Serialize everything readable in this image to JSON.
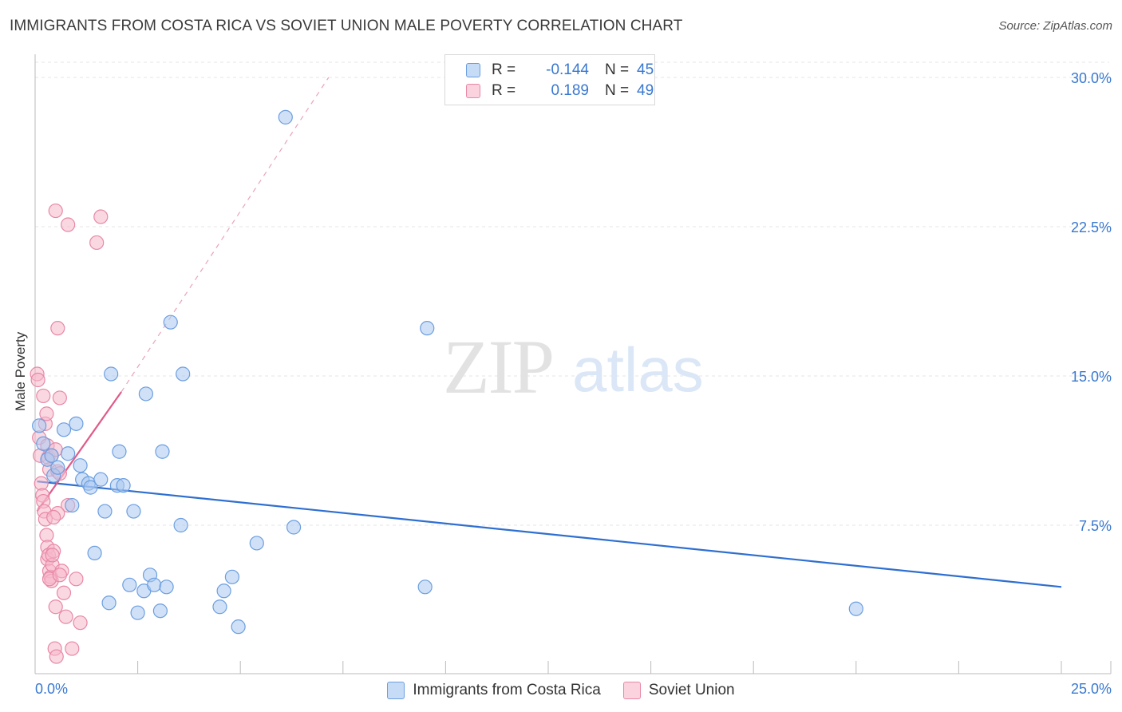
{
  "header": {
    "title": "IMMIGRANTS FROM COSTA RICA VS SOVIET UNION MALE POVERTY CORRELATION CHART",
    "source": "Source: ZipAtlas.com"
  },
  "watermark": {
    "zip": "ZIP",
    "atlas": "atlas"
  },
  "legend": {
    "rows": [
      {
        "r_label": "R =",
        "r_value": "-0.144",
        "n_label": "N =",
        "n_value": "45",
        "color": "#a9c8f0",
        "border": "#6b9ee0"
      },
      {
        "r_label": "R =",
        "r_value": "0.189",
        "n_label": "N =",
        "n_value": "49",
        "color": "#f6b8cb",
        "border": "#e888a6"
      }
    ]
  },
  "chart_data": {
    "type": "scatter",
    "title": "IMMIGRANTS FROM COSTA RICA VS SOVIET UNION MALE POVERTY CORRELATION CHART",
    "xlabel": "",
    "ylabel": "Male Poverty",
    "xlim": [
      0,
      25
    ],
    "ylim": [
      0,
      30.8
    ],
    "x_tick_labels": [
      "0.0%",
      "25.0%"
    ],
    "y_ticks": [
      7.5,
      15.0,
      22.5,
      30.0
    ],
    "y_tick_labels": [
      "7.5%",
      "15.0%",
      "22.5%",
      "30.0%"
    ],
    "grid": true,
    "series": [
      {
        "name": "Immigrants from Costa Rica",
        "color": "#a9c8f0",
        "stroke": "#6b9ee0",
        "line_color": "#2f6fd0",
        "trend": {
          "x0": 0.05,
          "y0": 9.7,
          "x1": 25.0,
          "y1": 4.4
        },
        "points": [
          [
            0.1,
            12.5
          ],
          [
            0.2,
            11.6
          ],
          [
            0.3,
            10.8
          ],
          [
            0.4,
            11.0
          ],
          [
            0.45,
            10.0
          ],
          [
            0.55,
            10.4
          ],
          [
            0.7,
            12.3
          ],
          [
            0.8,
            11.1
          ],
          [
            0.9,
            8.5
          ],
          [
            1.0,
            12.6
          ],
          [
            1.1,
            10.5
          ],
          [
            1.15,
            9.8
          ],
          [
            1.3,
            9.6
          ],
          [
            1.35,
            9.4
          ],
          [
            1.45,
            6.1
          ],
          [
            1.6,
            9.8
          ],
          [
            1.7,
            8.2
          ],
          [
            1.8,
            3.6
          ],
          [
            1.85,
            15.1
          ],
          [
            2.0,
            9.5
          ],
          [
            2.05,
            11.2
          ],
          [
            2.15,
            9.5
          ],
          [
            2.3,
            4.5
          ],
          [
            2.4,
            8.2
          ],
          [
            2.5,
            3.1
          ],
          [
            2.65,
            4.2
          ],
          [
            2.7,
            14.1
          ],
          [
            2.8,
            5.0
          ],
          [
            2.9,
            4.5
          ],
          [
            3.05,
            3.2
          ],
          [
            3.1,
            11.2
          ],
          [
            3.2,
            4.4
          ],
          [
            3.3,
            17.7
          ],
          [
            3.55,
            7.5
          ],
          [
            3.6,
            15.1
          ],
          [
            4.5,
            3.4
          ],
          [
            4.6,
            4.2
          ],
          [
            4.8,
            4.9
          ],
          [
            4.95,
            2.4
          ],
          [
            5.4,
            6.6
          ],
          [
            6.1,
            28.0
          ],
          [
            6.3,
            7.4
          ],
          [
            9.5,
            4.4
          ],
          [
            9.55,
            17.4
          ],
          [
            20.0,
            3.3
          ]
        ]
      },
      {
        "name": "Soviet Union",
        "color": "#f6b8cb",
        "stroke": "#e888a6",
        "line_color": "#e05a8a",
        "trend": {
          "x0": 0.05,
          "y0": 8.2,
          "x1": 2.1,
          "y1": 14.2
        },
        "trend_ext": {
          "x0": 2.1,
          "y0": 14.2,
          "x1": 7.15,
          "y1": 30.0
        },
        "points": [
          [
            0.05,
            15.1
          ],
          [
            0.07,
            14.8
          ],
          [
            0.1,
            11.9
          ],
          [
            0.12,
            11.0
          ],
          [
            0.15,
            9.6
          ],
          [
            0.18,
            9.0
          ],
          [
            0.2,
            8.7
          ],
          [
            0.22,
            8.2
          ],
          [
            0.25,
            7.8
          ],
          [
            0.28,
            7.0
          ],
          [
            0.3,
            6.4
          ],
          [
            0.3,
            5.8
          ],
          [
            0.33,
            6.0
          ],
          [
            0.35,
            5.2
          ],
          [
            0.38,
            4.9
          ],
          [
            0.4,
            4.7
          ],
          [
            0.42,
            5.5
          ],
          [
            0.45,
            6.2
          ],
          [
            0.25,
            12.6
          ],
          [
            0.28,
            13.1
          ],
          [
            0.3,
            11.5
          ],
          [
            0.32,
            10.9
          ],
          [
            0.35,
            10.3
          ],
          [
            0.4,
            11.0
          ],
          [
            0.5,
            11.3
          ],
          [
            0.55,
            10.2
          ],
          [
            0.6,
            10.1
          ],
          [
            0.65,
            5.2
          ],
          [
            0.7,
            4.1
          ],
          [
            0.75,
            2.9
          ],
          [
            0.8,
            8.5
          ],
          [
            0.55,
            8.1
          ],
          [
            0.45,
            7.9
          ],
          [
            0.5,
            3.4
          ],
          [
            0.48,
            1.3
          ],
          [
            0.52,
            0.9
          ],
          [
            0.35,
            4.8
          ],
          [
            0.42,
            6.0
          ],
          [
            0.6,
            5.0
          ],
          [
            0.9,
            1.3
          ],
          [
            1.0,
            4.8
          ],
          [
            1.1,
            2.6
          ],
          [
            0.55,
            17.4
          ],
          [
            0.5,
            23.3
          ],
          [
            0.6,
            13.9
          ],
          [
            0.8,
            22.6
          ],
          [
            1.5,
            21.7
          ],
          [
            1.6,
            23.0
          ],
          [
            0.2,
            14.0
          ]
        ]
      }
    ]
  }
}
